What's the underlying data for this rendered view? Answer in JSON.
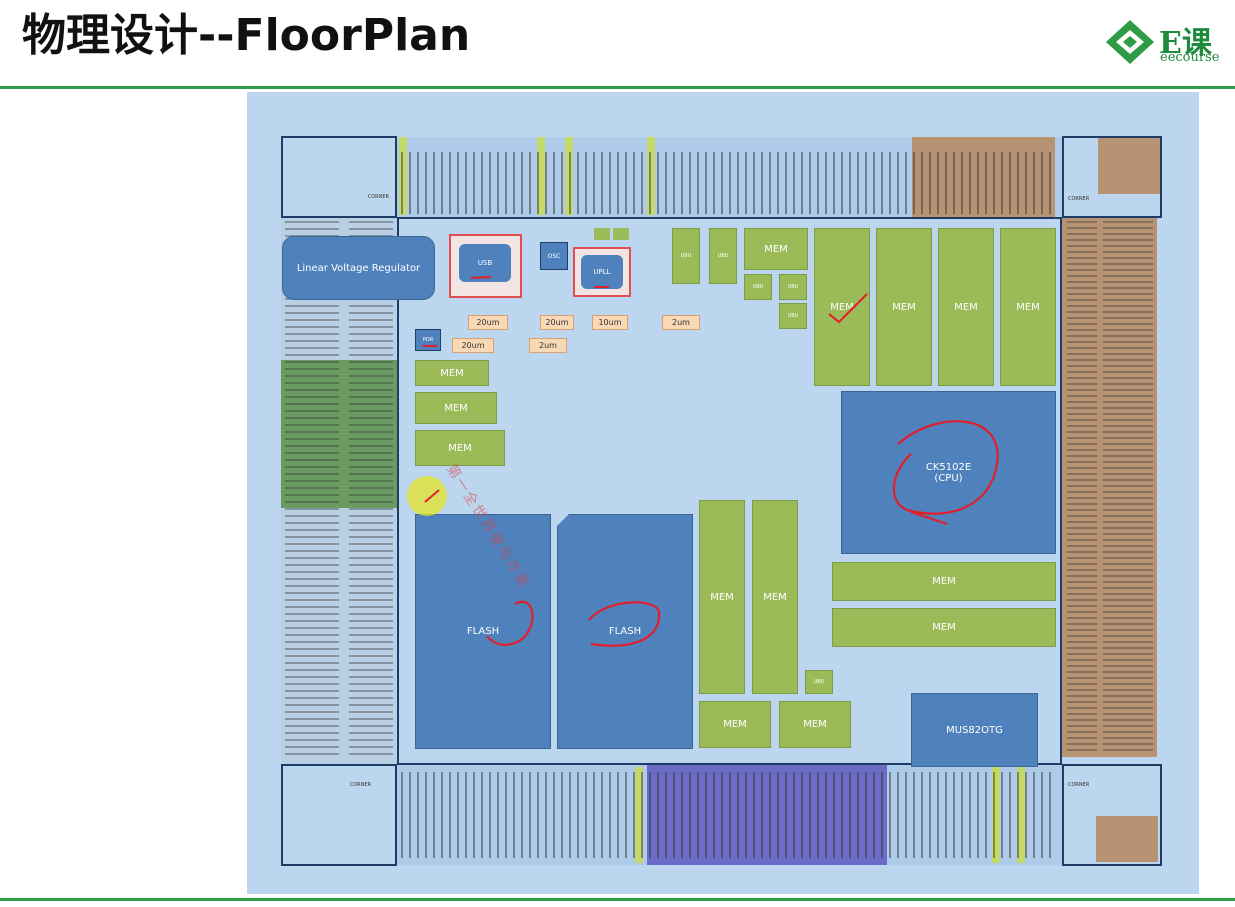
{
  "header": {
    "title": "物理设计--FloorPlan",
    "logo_text": "E课",
    "logo_sub": "eecourse"
  },
  "floorplan": {
    "regulator_label": "Linear Voltage Regulator",
    "cpu_label_1": "CK5102E",
    "cpu_label_2": "(CPU)",
    "flash_label": "FLASH",
    "mem_label": "MEM",
    "mus_label": "MUS82OTG",
    "usb_label": "USB",
    "osc_label": "OSC",
    "upll_label": "UPLL",
    "por_label": "POR",
    "ubu_label": "UBU",
    "um20_label": "20um",
    "um2_label": "2um",
    "um10_label": "10um",
    "corner_label_1": "CORNER",
    "corner_label_2": "CORNER",
    "corner_label_3": "CORNER",
    "corner_label_4": "CORNER",
    "watermark": "第一全世界便与亦美"
  },
  "colors": {
    "mem": "#9bbb59",
    "flash": "#4f81bd",
    "pad_green": "#6a9c62",
    "pad_brown": "#b79373",
    "pad_purple": "#6c6cc8",
    "annotation_red": "#e01f2b",
    "brand_green": "#2e9b46"
  }
}
